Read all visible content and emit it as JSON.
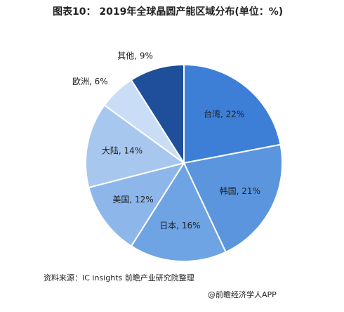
{
  "chart_data": {
    "type": "pie",
    "title": "图表10： 2019年全球晶圆产能区域分布(单位：%)",
    "categories": [
      "台湾",
      "韩国",
      "日本",
      "美国",
      "大陆",
      "欧洲",
      "其他"
    ],
    "values": [
      22,
      21,
      16,
      12,
      14,
      6,
      9
    ],
    "value_labels": [
      "台湾, 22%",
      "韩国, 21%",
      "日本, 16%",
      "美国, 12%",
      "大陆, 14%",
      "欧洲, 6%",
      "其他, 9%"
    ],
    "colors": [
      "#3d7fd6",
      "#5a95de",
      "#6ea3e4",
      "#8db7ea",
      "#a8c7ef",
      "#c9ddf6",
      "#1f4f9a"
    ],
    "source": "资料来源：IC insights 前瞻产业研究院整理",
    "footer": "@前瞻经济学人APP"
  }
}
